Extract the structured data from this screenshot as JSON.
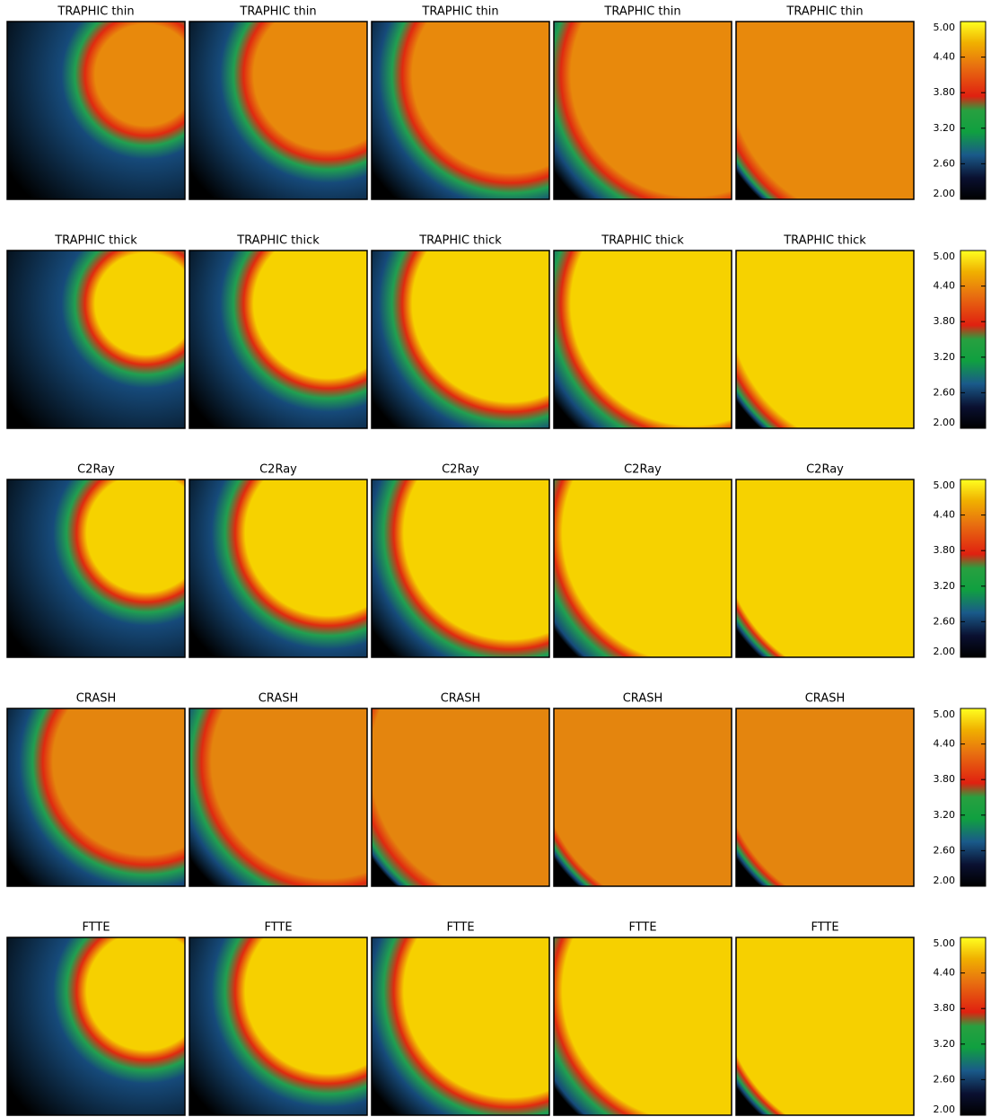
{
  "rows": [
    {
      "panels": [
        "TRAPHIC thin",
        "TRAPHIC thin",
        "TRAPHIC thin",
        "TRAPHIC thin",
        "TRAPHIC thin"
      ]
    },
    {
      "panels": [
        "TRAPHIC thick",
        "TRAPHIC thick",
        "TRAPHIC thick",
        "TRAPHIC thick",
        "TRAPHIC thick"
      ]
    },
    {
      "panels": [
        "C2Ray",
        "C2Ray",
        "C2Ray",
        "C2Ray",
        "C2Ray"
      ]
    },
    {
      "panels": [
        "CRASH",
        "CRASH",
        "CRASH",
        "CRASH",
        "CRASH"
      ]
    },
    {
      "panels": [
        "FTTE",
        "FTTE",
        "FTTE",
        "FTTE",
        "FTTE"
      ]
    }
  ],
  "colorbar": {
    "range": [
      2,
      5
    ],
    "ticks": [
      {
        "value": 5,
        "label": "5.00"
      },
      {
        "value": 4.4,
        "label": "4.40"
      },
      {
        "value": 3.8,
        "label": "3.80"
      },
      {
        "value": 3.2,
        "label": "3.20"
      },
      {
        "value": 2.6,
        "label": "2.60"
      },
      {
        "value": 2,
        "label": "2.00"
      }
    ]
  }
}
